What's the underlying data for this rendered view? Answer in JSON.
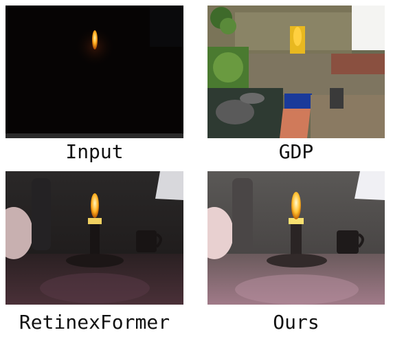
{
  "panels": [
    {
      "id": "input",
      "caption": "Input"
    },
    {
      "id": "gdp",
      "caption": "GDP"
    },
    {
      "id": "retinexformer",
      "caption": "RetinexFormer"
    },
    {
      "id": "ours",
      "caption": "Ours"
    }
  ]
}
